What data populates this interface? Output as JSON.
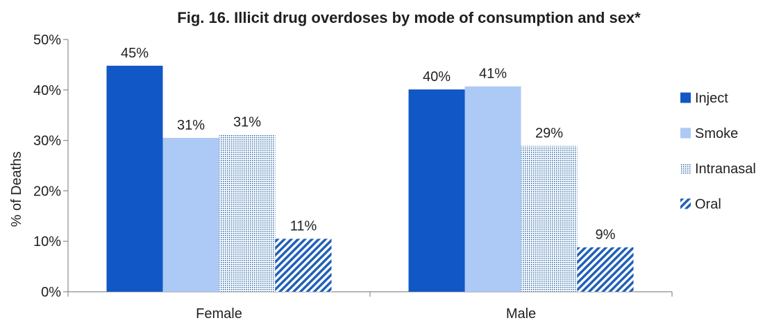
{
  "chart_data": {
    "type": "bar",
    "title": "Fig. 16. Illicit drug overdoses by mode of consumption and sex*",
    "xlabel": "",
    "ylabel": "% of Deaths",
    "ylim": [
      0,
      0.5
    ],
    "y_ticks": [
      "0%",
      "10%",
      "20%",
      "30%",
      "40%",
      "50%"
    ],
    "categories": [
      "Female",
      "Male"
    ],
    "series": [
      {
        "name": "Inject",
        "values": [
          0.448,
          0.401
        ],
        "labels": [
          "45%",
          "40%"
        ],
        "color": "#1157c5",
        "pattern": "solid"
      },
      {
        "name": "Smoke",
        "values": [
          0.305,
          0.407
        ],
        "labels": [
          "31%",
          "41%"
        ],
        "color": "#adc9f6",
        "pattern": "solid"
      },
      {
        "name": "Intranasal",
        "values": [
          0.311,
          0.289
        ],
        "labels": [
          "31%",
          "29%"
        ],
        "color": "#2f6aa8",
        "pattern": "dots"
      },
      {
        "name": "Oral",
        "values": [
          0.105,
          0.088
        ],
        "labels": [
          "11%",
          "9%"
        ],
        "color": "#1f5fb8",
        "pattern": "diagonal"
      }
    ],
    "grid": false,
    "legend_position": "right"
  }
}
